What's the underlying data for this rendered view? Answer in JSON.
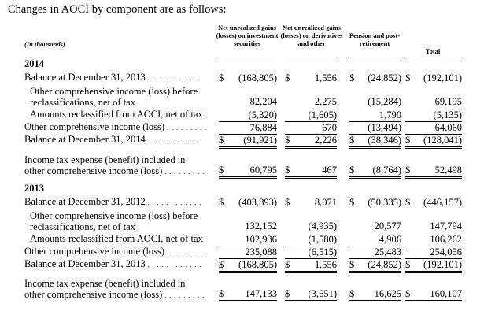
{
  "intro": "Changes in AOCI by component are as follows:",
  "units_label": "(In thousands)",
  "columns": [
    "Net unrealized gains (losses) on investment securities",
    "Net unrealized gains (losses) on derivatives and other",
    "Pension and post-retirement",
    "Total"
  ],
  "sections": [
    {
      "year": "2014",
      "rows": [
        {
          "label": [
            "Balance at December 31, 2013"
          ],
          "dots": true,
          "indent": 0,
          "cells": [
            [
              "$",
              "(168,805)"
            ],
            [
              "$",
              "1,556"
            ],
            [
              "$",
              "(24,852)"
            ],
            [
              "$",
              "(192,101)"
            ]
          ],
          "rule": "none"
        },
        {
          "label": [
            "Other comprehensive income (loss) before",
            "reclassifications, net of tax"
          ],
          "dots": false,
          "indent": 1,
          "cells": [
            [
              "",
              "82,204"
            ],
            [
              "",
              "2,275"
            ],
            [
              "",
              "(15,284)"
            ],
            [
              "",
              "69,195"
            ]
          ],
          "rule": "none"
        },
        {
          "label": [
            "Amounts reclassified from AOCI, net of tax"
          ],
          "dots": false,
          "indent": 1,
          "cells": [
            [
              "",
              "(5,320)"
            ],
            [
              "",
              "(1,605)"
            ],
            [
              "",
              "1,790"
            ],
            [
              "",
              "(5,135)"
            ]
          ],
          "rule": "single"
        },
        {
          "label": [
            "Other comprehensive income (loss)"
          ],
          "dots": true,
          "indent": 0,
          "cells": [
            [
              "",
              "76,884"
            ],
            [
              "",
              "670"
            ],
            [
              "",
              "(13,494)"
            ],
            [
              "",
              "64,060"
            ]
          ],
          "rule": "single"
        },
        {
          "label": [
            "Balance at December 31, 2014"
          ],
          "dots": true,
          "indent": 0,
          "cells": [
            [
              "$",
              "(91,921)"
            ],
            [
              "$",
              "2,226"
            ],
            [
              "$",
              "(38,346)"
            ],
            [
              "$",
              "(128,041)"
            ]
          ],
          "rule": "double"
        },
        {
          "label": [
            "Income tax expense (benefit) included in",
            "other comprehensive income (loss)"
          ],
          "dots": true,
          "indent": 0,
          "cells": [
            [
              "$",
              "60,795"
            ],
            [
              "$",
              "467"
            ],
            [
              "$",
              "(8,764)"
            ],
            [
              "$",
              "52,498"
            ]
          ],
          "rule": "double"
        }
      ]
    },
    {
      "year": "2013",
      "rows": [
        {
          "label": [
            "Balance at December 31, 2012"
          ],
          "dots": true,
          "indent": 0,
          "cells": [
            [
              "$",
              "(403,893)"
            ],
            [
              "$",
              "8,071"
            ],
            [
              "$",
              "(50,335)"
            ],
            [
              "$",
              "(446,157)"
            ]
          ],
          "rule": "none"
        },
        {
          "label": [
            "Other comprehensive income (loss) before",
            "reclassifications, net of tax"
          ],
          "dots": false,
          "indent": 1,
          "cells": [
            [
              "",
              "132,152"
            ],
            [
              "",
              "(4,935)"
            ],
            [
              "",
              "20,577"
            ],
            [
              "",
              "147,794"
            ]
          ],
          "rule": "none"
        },
        {
          "label": [
            "Amounts reclassified from AOCI, net of tax"
          ],
          "dots": false,
          "indent": 1,
          "cells": [
            [
              "",
              "102,936"
            ],
            [
              "",
              "(1,580)"
            ],
            [
              "",
              "4,906"
            ],
            [
              "",
              "106,262"
            ]
          ],
          "rule": "single"
        },
        {
          "label": [
            "Other comprehensive income (loss)"
          ],
          "dots": true,
          "indent": 0,
          "cells": [
            [
              "",
              "235,088"
            ],
            [
              "",
              "(6,515)"
            ],
            [
              "",
              "25,483"
            ],
            [
              "",
              "254,056"
            ]
          ],
          "rule": "single"
        },
        {
          "label": [
            "Balance at December 31, 2013"
          ],
          "dots": true,
          "indent": 0,
          "cells": [
            [
              "$",
              "(168,805)"
            ],
            [
              "$",
              "1,556"
            ],
            [
              "$",
              "(24,852)"
            ],
            [
              "$",
              "(192,101)"
            ]
          ],
          "rule": "double"
        },
        {
          "label": [
            "Income tax expense (benefit) included in",
            "other comprehensive income (loss)"
          ],
          "dots": true,
          "indent": 0,
          "cells": [
            [
              "$",
              "147,133"
            ],
            [
              "$",
              "(3,651)"
            ],
            [
              "$",
              "16,625"
            ],
            [
              "$",
              "160,107"
            ]
          ],
          "rule": "double"
        }
      ]
    }
  ]
}
